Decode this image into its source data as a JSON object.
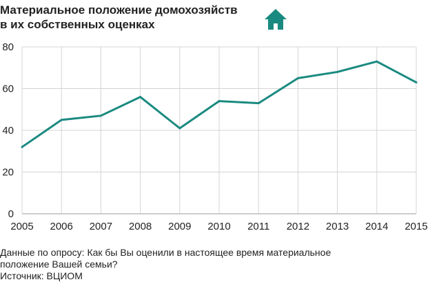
{
  "header": {
    "title_line1": "Материальное положение домохозяйств",
    "title_line2": "в их собственных оценках",
    "icon": "house-icon"
  },
  "footer": {
    "note_line1": "Данные по опросу: Как бы Вы оценили в настоящее время материальное",
    "note_line2": "положение Вашей семьи?",
    "source": "Источник: ВЦИОМ"
  },
  "colors": {
    "line": "#1a8a80",
    "icon": "#1a8a80",
    "grid": "#d4d4d4"
  },
  "chart_data": {
    "type": "line",
    "x": [
      "2005",
      "2006",
      "2007",
      "2008",
      "2009",
      "2010",
      "2011",
      "2012",
      "2013",
      "2014",
      "2015"
    ],
    "series": [
      {
        "values": [
          32,
          45,
          47,
          56,
          41,
          54,
          53,
          65,
          68,
          73,
          63
        ]
      }
    ],
    "ylim": [
      0,
      80
    ],
    "yticks": [
      "0",
      "20",
      "40",
      "60",
      "80"
    ],
    "grid": true
  }
}
